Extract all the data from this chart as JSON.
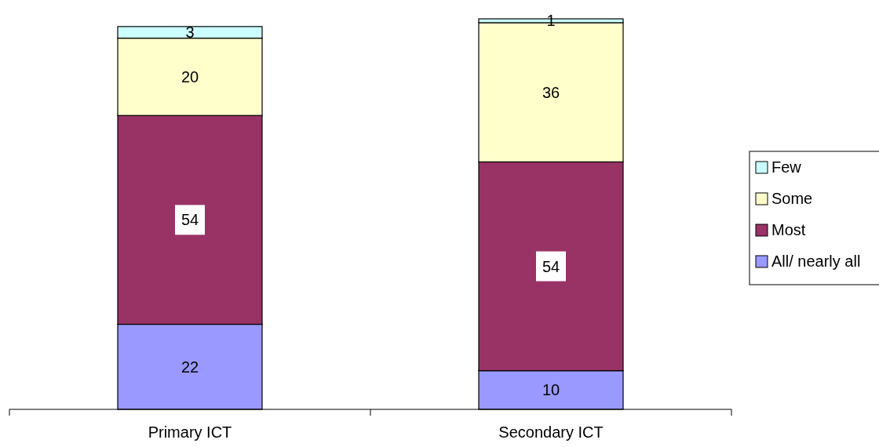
{
  "chart_data": {
    "type": "bar",
    "stacked": true,
    "categories": [
      "Primary ICT",
      "Secondary ICT"
    ],
    "series": [
      {
        "name": "All/ nearly all",
        "color": "#9999ff",
        "values": [
          22,
          10
        ]
      },
      {
        "name": "Most",
        "color": "#993366",
        "values": [
          54,
          54
        ]
      },
      {
        "name": "Some",
        "color": "#ffffcc",
        "values": [
          20,
          36
        ]
      },
      {
        "name": "Few",
        "color": "#ccffff",
        "values": [
          3,
          1
        ]
      }
    ],
    "data_labels": true,
    "legend": "right"
  }
}
